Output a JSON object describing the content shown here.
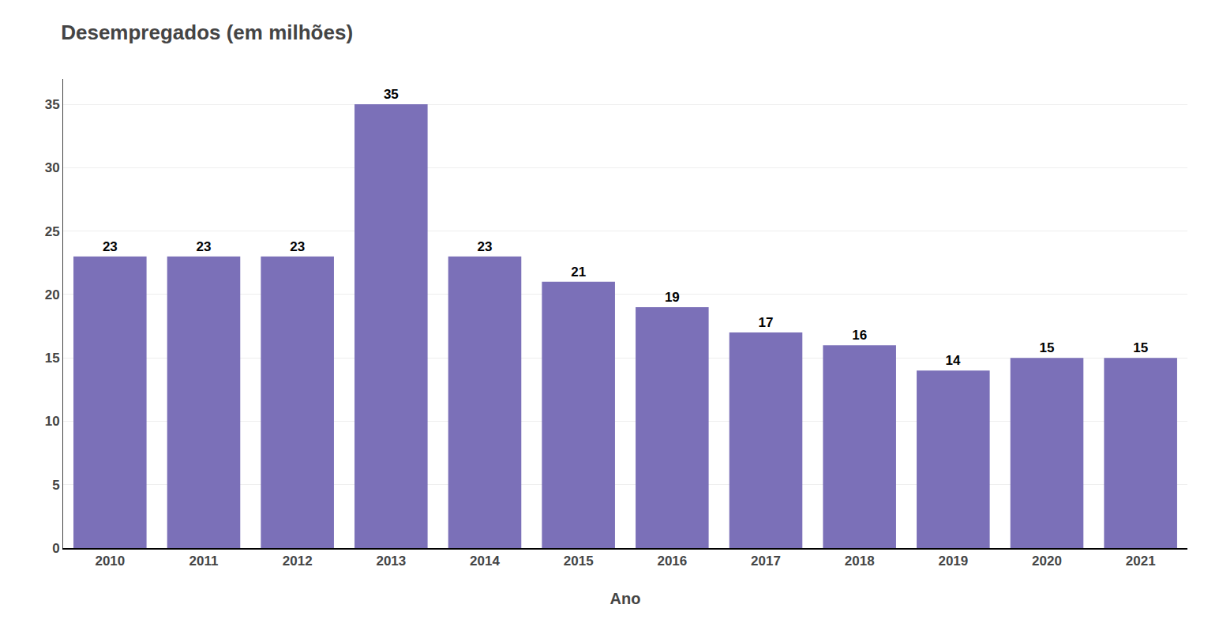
{
  "chart_data": {
    "type": "bar",
    "title": "Desempregados (em milhões)",
    "xlabel": "Ano",
    "categories": [
      "2010",
      "2011",
      "2012",
      "2013",
      "2014",
      "2015",
      "2016",
      "2017",
      "2018",
      "2019",
      "2020",
      "2021"
    ],
    "values": [
      23,
      23,
      23,
      35,
      23,
      21,
      19,
      17,
      16,
      14,
      15,
      15
    ],
    "color": "#7b70b8",
    "ylim": [
      0,
      37
    ],
    "yticks": [
      0,
      5,
      10,
      15,
      20,
      25,
      30,
      35
    ],
    "grid": true,
    "data_labels": true
  }
}
